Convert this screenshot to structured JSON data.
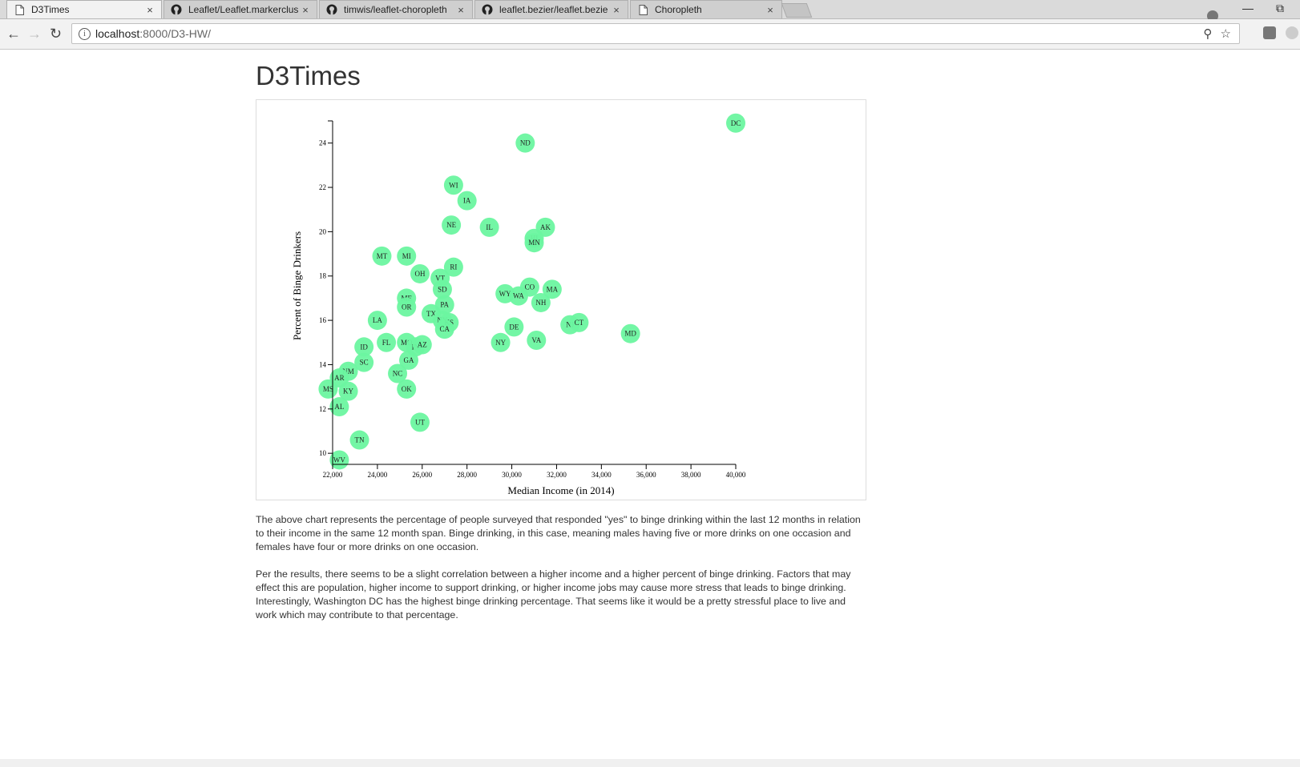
{
  "browser": {
    "tabs": [
      {
        "title": "D3Times",
        "icon": "page-icon",
        "active": true
      },
      {
        "title": "Leaflet/Leaflet.markerclus",
        "icon": "github-icon",
        "active": false
      },
      {
        "title": "timwis/leaflet-choropleth",
        "icon": "github-icon",
        "active": false
      },
      {
        "title": "leaflet.bezier/leaflet.bezie",
        "icon": "github-icon",
        "active": false
      },
      {
        "title": "Choropleth",
        "icon": "page-icon",
        "active": false
      }
    ],
    "close_glyph": "×",
    "url_host": "localhost",
    "url_path": ":8000/D3-HW/"
  },
  "page": {
    "title": "D3Times",
    "paragraphs": [
      "The above chart represents the percentage of people surveyed that responded \"yes\" to binge drinking within the last 12 months in relation to their income in the same 12 month span. Binge drinking, in this case, meaning males having five or more drinks on one occasion and females have four or more drinks on one occasion.",
      "Per the results, there seems to be a slight correlation between a higher income and a higher percent of binge drinking. Factors that may effect this are population, higher income to support drinking, or higher income jobs may cause more stress that leads to binge drinking. Interestingly, Washington DC has the highest binge drinking percentage. That seems like it would be a pretty stressful place to live and work which may contribute to that percentage."
    ]
  },
  "colors": {
    "point": "#6cf5a0",
    "accent": "#333333"
  },
  "chart_data": {
    "type": "scatter",
    "xlabel": "Median Income (in 2014)",
    "ylabel": "Percent of Binge Drinkers",
    "xlim": [
      22000,
      40000
    ],
    "ylim": [
      9.5,
      25
    ],
    "xticks": [
      22000,
      24000,
      26000,
      28000,
      30000,
      32000,
      34000,
      36000,
      38000,
      40000
    ],
    "yticks": [
      10,
      12,
      14,
      16,
      18,
      20,
      22,
      24
    ],
    "points": [
      {
        "label": "DC",
        "x": 40000,
        "y": 24.9
      },
      {
        "label": "ND",
        "x": 30600,
        "y": 24.0
      },
      {
        "label": "WI",
        "x": 27400,
        "y": 22.1
      },
      {
        "label": "IA",
        "x": 28000,
        "y": 21.4
      },
      {
        "label": "NE",
        "x": 27300,
        "y": 20.3
      },
      {
        "label": "IL",
        "x": 29000,
        "y": 20.2
      },
      {
        "label": "AK",
        "x": 31500,
        "y": 20.2
      },
      {
        "label": "HI",
        "x": 31000,
        "y": 19.7
      },
      {
        "label": "MN",
        "x": 31000,
        "y": 19.5
      },
      {
        "label": "MT",
        "x": 24200,
        "y": 18.9
      },
      {
        "label": "MI",
        "x": 25300,
        "y": 18.9
      },
      {
        "label": "RI",
        "x": 27400,
        "y": 18.4
      },
      {
        "label": "OH",
        "x": 25900,
        "y": 18.1
      },
      {
        "label": "VT",
        "x": 26800,
        "y": 17.9
      },
      {
        "label": "SD",
        "x": 26900,
        "y": 17.4
      },
      {
        "label": "CO",
        "x": 30800,
        "y": 17.5
      },
      {
        "label": "MA",
        "x": 31800,
        "y": 17.4
      },
      {
        "label": "WY",
        "x": 29700,
        "y": 17.2
      },
      {
        "label": "WA",
        "x": 30300,
        "y": 17.1
      },
      {
        "label": "NH",
        "x": 31300,
        "y": 16.8
      },
      {
        "label": "ME",
        "x": 25300,
        "y": 17.0
      },
      {
        "label": "OR",
        "x": 25300,
        "y": 16.6
      },
      {
        "label": "PA",
        "x": 27000,
        "y": 16.7
      },
      {
        "label": "TX",
        "x": 26400,
        "y": 16.3
      },
      {
        "label": "NY",
        "x": 26900,
        "y": 16.0
      },
      {
        "label": "KS",
        "x": 27200,
        "y": 15.9
      },
      {
        "label": "CA",
        "x": 27000,
        "y": 15.6
      },
      {
        "label": "LA",
        "x": 24000,
        "y": 16.0
      },
      {
        "label": "NJ",
        "x": 32600,
        "y": 15.8
      },
      {
        "label": "CT",
        "x": 33000,
        "y": 15.9
      },
      {
        "label": "DE",
        "x": 30100,
        "y": 15.7
      },
      {
        "label": "MD",
        "x": 35300,
        "y": 15.4
      },
      {
        "label": "NY",
        "x": 29500,
        "y": 15.0
      },
      {
        "label": "VA",
        "x": 31100,
        "y": 15.1
      },
      {
        "label": "FL",
        "x": 24400,
        "y": 15.0
      },
      {
        "label": "MO",
        "x": 25300,
        "y": 15.0
      },
      {
        "label": "IN",
        "x": 25700,
        "y": 14.8
      },
      {
        "label": "AZ",
        "x": 26000,
        "y": 14.9
      },
      {
        "label": "ID",
        "x": 23400,
        "y": 14.8
      },
      {
        "label": "GA",
        "x": 25400,
        "y": 14.2
      },
      {
        "label": "SC",
        "x": 23400,
        "y": 14.1
      },
      {
        "label": "NM",
        "x": 22700,
        "y": 13.7
      },
      {
        "label": "NC",
        "x": 24900,
        "y": 13.6
      },
      {
        "label": "AR",
        "x": 22300,
        "y": 13.4
      },
      {
        "label": "MS",
        "x": 21800,
        "y": 12.9
      },
      {
        "label": "KY",
        "x": 22700,
        "y": 12.8
      },
      {
        "label": "OK",
        "x": 25300,
        "y": 12.9
      },
      {
        "label": "AL",
        "x": 22300,
        "y": 12.1
      },
      {
        "label": "UT",
        "x": 25900,
        "y": 11.4
      },
      {
        "label": "TN",
        "x": 23200,
        "y": 10.6
      },
      {
        "label": "WV",
        "x": 22300,
        "y": 9.7
      }
    ]
  }
}
